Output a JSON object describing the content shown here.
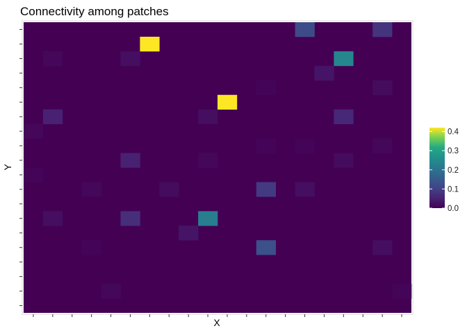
{
  "chart_data": {
    "type": "heatmap",
    "title": "Connectivity among patches",
    "xlabel": "X",
    "ylabel": "Y",
    "n_cols": 20,
    "n_rows": 20,
    "x_tick_labels": [],
    "y_tick_labels": [],
    "legend": {
      "position": "right",
      "ticks": [
        0.0,
        0.1,
        0.2,
        0.3,
        0.4
      ],
      "tick_labels": [
        "0.0",
        "0.1",
        "0.2",
        "0.3",
        "0.4"
      ],
      "range": [
        0.0,
        0.42
      ]
    },
    "colormap": "viridis",
    "background_value": 0.0,
    "cells": [
      {
        "col": 15,
        "row": 1,
        "value": 0.12
      },
      {
        "col": 19,
        "row": 1,
        "value": 0.08
      },
      {
        "col": 7,
        "row": 2,
        "value": 0.42
      },
      {
        "col": 2,
        "row": 3,
        "value": 0.01
      },
      {
        "col": 6,
        "row": 3,
        "value": 0.02
      },
      {
        "col": 17,
        "row": 3,
        "value": 0.24
      },
      {
        "col": 16,
        "row": 4,
        "value": 0.03
      },
      {
        "col": 13,
        "row": 5,
        "value": 0.005
      },
      {
        "col": 19,
        "row": 5,
        "value": 0.015
      },
      {
        "col": 11,
        "row": 6,
        "value": 0.42
      },
      {
        "col": 2,
        "row": 7,
        "value": 0.05
      },
      {
        "col": 10,
        "row": 7,
        "value": 0.02
      },
      {
        "col": 17,
        "row": 7,
        "value": 0.06
      },
      {
        "col": 1,
        "row": 8,
        "value": 0.01
      },
      {
        "col": 13,
        "row": 9,
        "value": 0.005
      },
      {
        "col": 15,
        "row": 9,
        "value": 0.005
      },
      {
        "col": 19,
        "row": 9,
        "value": 0.01
      },
      {
        "col": 6,
        "row": 10,
        "value": 0.05
      },
      {
        "col": 10,
        "row": 10,
        "value": 0.01
      },
      {
        "col": 17,
        "row": 10,
        "value": 0.015
      },
      {
        "col": 1,
        "row": 11,
        "value": 0.005
      },
      {
        "col": 4,
        "row": 12,
        "value": 0.01
      },
      {
        "col": 8,
        "row": 12,
        "value": 0.015
      },
      {
        "col": 13,
        "row": 12,
        "value": 0.09
      },
      {
        "col": 15,
        "row": 12,
        "value": 0.02
      },
      {
        "col": 2,
        "row": 14,
        "value": 0.02
      },
      {
        "col": 6,
        "row": 14,
        "value": 0.07
      },
      {
        "col": 10,
        "row": 14,
        "value": 0.22
      },
      {
        "col": 9,
        "row": 15,
        "value": 0.03
      },
      {
        "col": 4,
        "row": 16,
        "value": 0.005
      },
      {
        "col": 13,
        "row": 16,
        "value": 0.13
      },
      {
        "col": 19,
        "row": 16,
        "value": 0.02
      },
      {
        "col": 5,
        "row": 19,
        "value": 0.01
      },
      {
        "col": 20,
        "row": 19,
        "value": 0.005
      }
    ]
  }
}
